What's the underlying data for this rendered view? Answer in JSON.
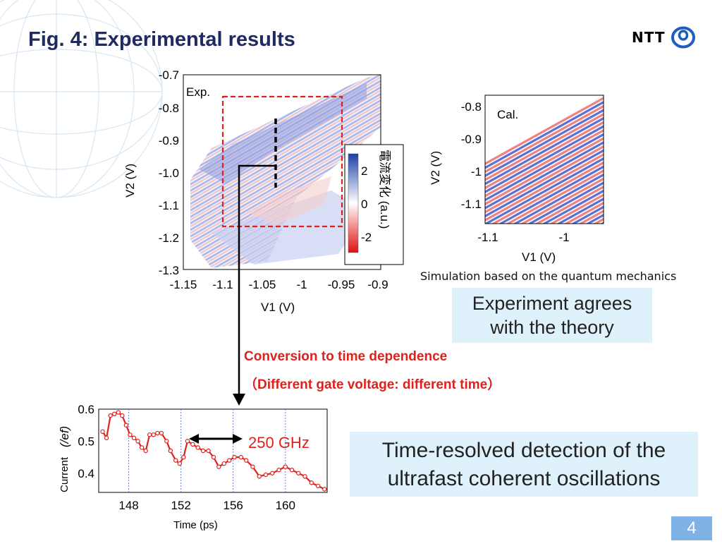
{
  "slide": {
    "title": "Fig. 4: Experimental results",
    "logo_text": "NTT",
    "page_number": "4"
  },
  "colors": {
    "title": "#1f2a60",
    "accent_red": "#e0211b",
    "box_fill": "#dff1fb",
    "page_badge": "#7fb3e6"
  },
  "icons": [
    "ntt-logo-icon",
    "globe-background-icon"
  ],
  "exp_panel": {
    "label": "Exp.",
    "x_axis_label": "V1 (V)",
    "y_axis_label": "V2 (V)",
    "x_ticks": [
      "-1.15",
      "-1.1",
      "-1.05",
      "-1",
      "-0.95",
      "-0.9"
    ],
    "y_ticks": [
      "-0.7",
      "-0.8",
      "-0.9",
      "-1.0",
      "-1.1",
      "-1.2",
      "-1.3"
    ],
    "colorbar": {
      "label": "電流変化 (a.u.)",
      "ticks": [
        "2",
        "0",
        "-2"
      ]
    }
  },
  "cal_panel": {
    "label": "Cal.",
    "x_axis_label": "V1 (V)",
    "y_axis_label": "V2 (V)",
    "x_ticks": [
      "-1.1",
      "-1"
    ],
    "y_ticks": [
      "-0.8",
      "-0.9",
      "-1",
      "-1.1"
    ],
    "caption": "Simulation based on the quantum mechanics"
  },
  "agree_box": {
    "line1": "Experiment agrees",
    "line2": "with the theory"
  },
  "conversion": {
    "line1": "Conversion to time dependence",
    "line2": "（Different gate voltage: different time）"
  },
  "detect_box": {
    "line1": "Time-resolved detection of the",
    "line2": "ultrafast coherent oscillations"
  },
  "chart_data": {
    "type": "line",
    "title": "",
    "xlabel": "Time (ps)",
    "ylabel": "Current",
    "ylabel_unit": "(/ef)",
    "xlim": [
      145.7,
      163.2
    ],
    "ylim": [
      0.34,
      0.6
    ],
    "x_ticks": [
      "148",
      "152",
      "156",
      "160"
    ],
    "y_ticks": [
      "0.6",
      "0.5",
      "0.4"
    ],
    "annotation": "250 GHz",
    "series": [
      {
        "x": [
          146.0,
          146.3,
          146.6,
          146.9,
          147.2,
          147.5,
          147.8,
          148.1,
          148.4,
          148.7,
          149.0,
          149.3,
          149.6,
          149.9,
          150.2,
          150.5,
          150.9,
          151.2,
          151.6,
          151.9,
          152.2,
          152.5,
          152.9,
          153.3,
          153.7,
          154.1,
          154.5,
          154.9,
          155.3,
          155.7,
          156.1,
          156.6,
          157.0,
          157.5,
          158.0,
          158.5,
          159.0,
          159.5,
          160.0,
          160.5,
          161.0,
          161.5,
          162.0,
          162.5,
          163.0
        ],
        "y": [
          0.53,
          0.51,
          0.58,
          0.585,
          0.59,
          0.58,
          0.55,
          0.52,
          0.51,
          0.5,
          0.48,
          0.47,
          0.52,
          0.52,
          0.525,
          0.525,
          0.5,
          0.47,
          0.44,
          0.43,
          0.45,
          0.5,
          0.49,
          0.48,
          0.47,
          0.47,
          0.45,
          0.42,
          0.43,
          0.44,
          0.45,
          0.45,
          0.44,
          0.42,
          0.39,
          0.395,
          0.4,
          0.41,
          0.42,
          0.41,
          0.4,
          0.39,
          0.37,
          0.36,
          0.35
        ]
      }
    ]
  }
}
